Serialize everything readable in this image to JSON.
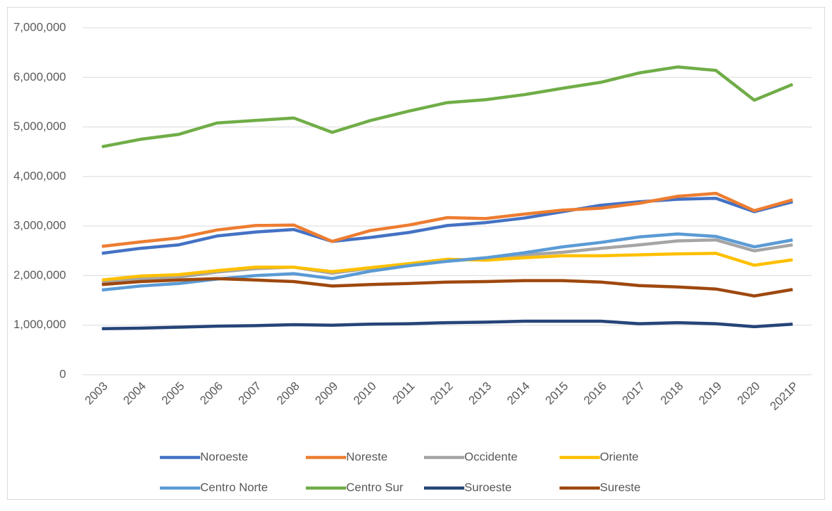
{
  "chart_data": {
    "type": "line",
    "categories": [
      "2003",
      "2004",
      "2005",
      "2006",
      "2007",
      "2008",
      "2009",
      "2010",
      "2011",
      "2012",
      "2013",
      "2014",
      "2015",
      "2016",
      "2017",
      "2018",
      "2019",
      "2020",
      "2021P"
    ],
    "series": [
      {
        "name": "Noroeste",
        "color": "#4472c4",
        "values": [
          2450000,
          2550000,
          2620000,
          2800000,
          2880000,
          2930000,
          2690000,
          2770000,
          2870000,
          3010000,
          3070000,
          3160000,
          3290000,
          3420000,
          3490000,
          3540000,
          3560000,
          3290000,
          3490000
        ]
      },
      {
        "name": "Noreste",
        "color": "#ed7d31",
        "values": [
          2590000,
          2680000,
          2760000,
          2920000,
          3010000,
          3020000,
          2690000,
          2910000,
          3020000,
          3170000,
          3150000,
          3240000,
          3320000,
          3360000,
          3460000,
          3600000,
          3660000,
          3310000,
          3530000
        ]
      },
      {
        "name": "Occidente",
        "color": "#a5a5a5",
        "values": [
          1880000,
          1930000,
          1970000,
          2070000,
          2140000,
          2170000,
          2050000,
          2150000,
          2230000,
          2290000,
          2350000,
          2420000,
          2470000,
          2550000,
          2620000,
          2700000,
          2720000,
          2500000,
          2620000
        ]
      },
      {
        "name": "Oriente",
        "color": "#ffc000",
        "values": [
          1910000,
          1990000,
          2020000,
          2100000,
          2170000,
          2170000,
          2080000,
          2160000,
          2240000,
          2330000,
          2310000,
          2360000,
          2400000,
          2400000,
          2420000,
          2440000,
          2450000,
          2210000,
          2320000
        ]
      },
      {
        "name": "Centro Norte",
        "color": "#5b9bd5",
        "values": [
          1710000,
          1790000,
          1840000,
          1930000,
          2000000,
          2040000,
          1940000,
          2090000,
          2200000,
          2290000,
          2360000,
          2460000,
          2580000,
          2670000,
          2780000,
          2840000,
          2790000,
          2580000,
          2720000
        ]
      },
      {
        "name": "Centro Sur",
        "color": "#70ad47",
        "values": [
          4600000,
          4750000,
          4850000,
          5080000,
          5130000,
          5180000,
          4890000,
          5130000,
          5320000,
          5490000,
          5550000,
          5650000,
          5780000,
          5900000,
          6090000,
          6210000,
          6140000,
          5540000,
          5860000
        ]
      },
      {
        "name": "Suroeste",
        "color": "#264478",
        "values": [
          930000,
          940000,
          960000,
          980000,
          990000,
          1010000,
          1000000,
          1020000,
          1030000,
          1050000,
          1060000,
          1080000,
          1080000,
          1080000,
          1030000,
          1050000,
          1030000,
          970000,
          1020000
        ]
      },
      {
        "name": "Sureste",
        "color": "#9e480e",
        "values": [
          1820000,
          1880000,
          1910000,
          1940000,
          1910000,
          1880000,
          1790000,
          1820000,
          1840000,
          1870000,
          1880000,
          1900000,
          1900000,
          1870000,
          1800000,
          1770000,
          1730000,
          1590000,
          1720000
        ]
      }
    ],
    "ylim": [
      0,
      7000000
    ],
    "yticks": [
      0,
      {
        "value": 1000000,
        "label": "1,000,000"
      },
      {
        "value": 2000000,
        "label": "2,000,000"
      },
      {
        "value": 3000000,
        "label": "3,000,000"
      },
      {
        "value": 4000000,
        "label": "4,000,000"
      },
      {
        "value": 5000000,
        "label": "5,000,000"
      },
      {
        "value": 6000000,
        "label": "6,000,000"
      },
      {
        "value": 7000000,
        "label": "7,000,000"
      }
    ],
    "grid": true,
    "legend": "bottom"
  }
}
